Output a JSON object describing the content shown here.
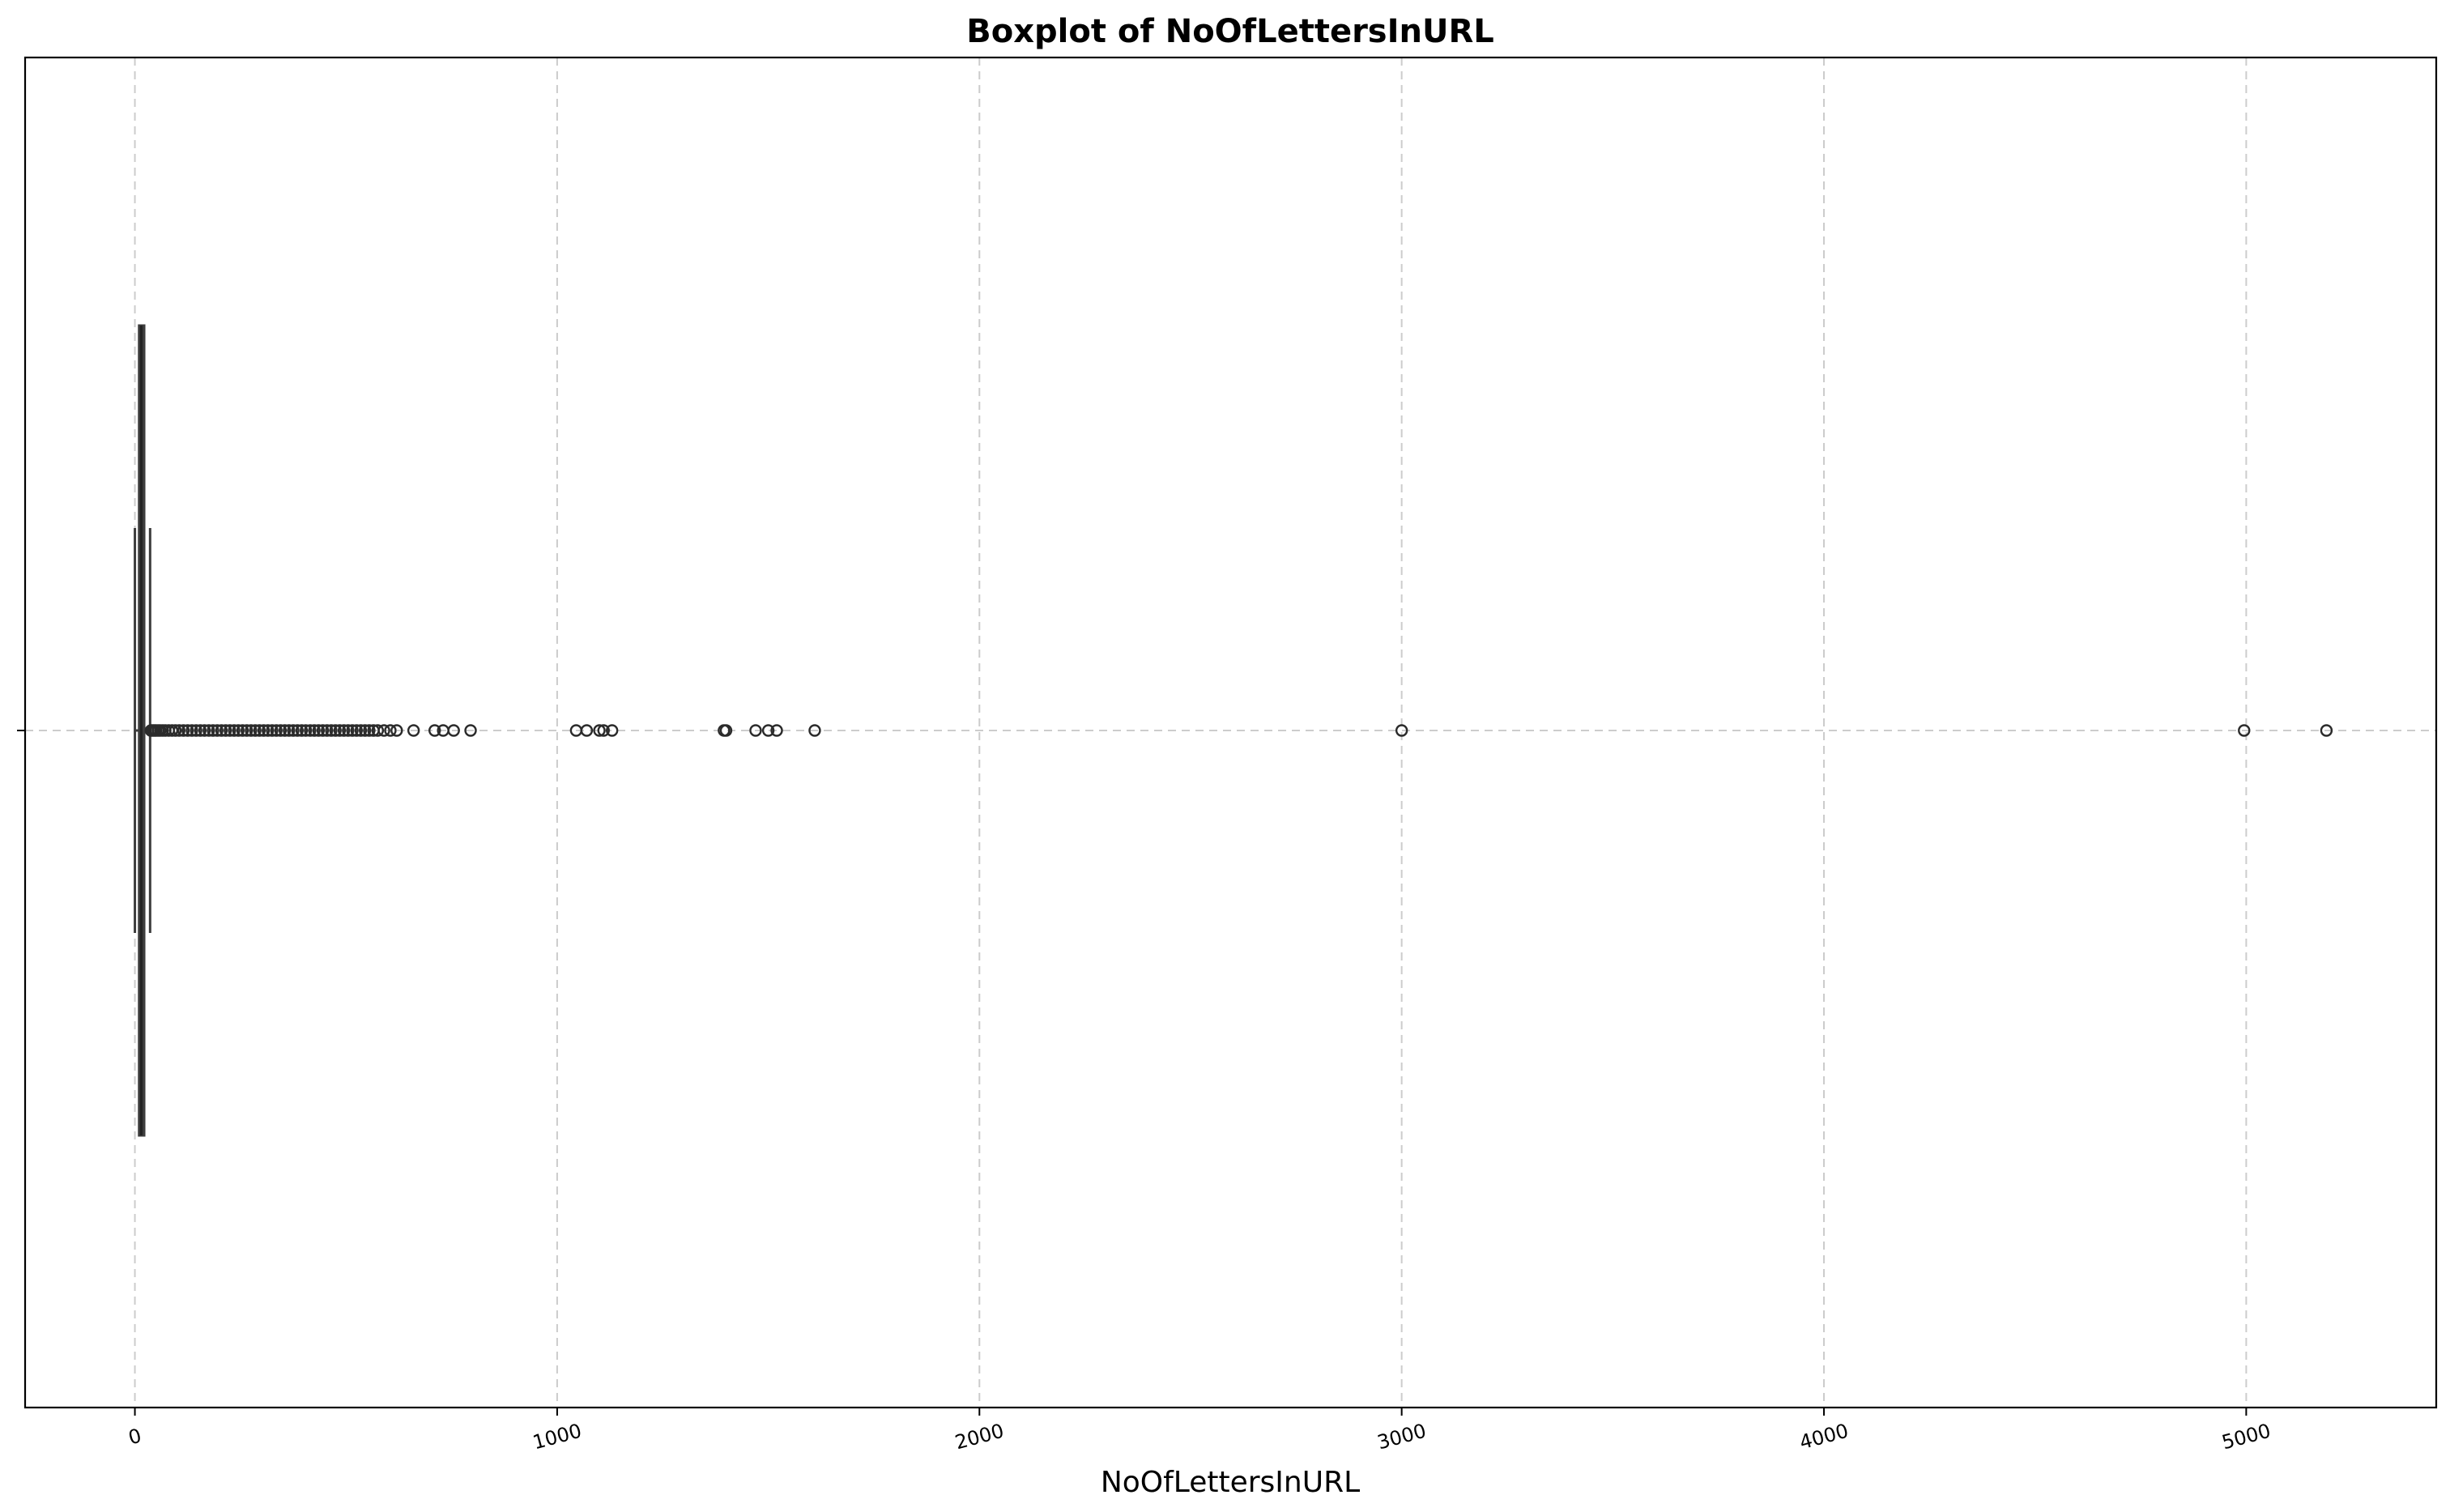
{
  "chart_data": {
    "type": "boxplot",
    "title": "Boxplot of NoOfLettersInURL",
    "xlabel": "NoOfLettersInURL",
    "ylabel": "",
    "orientation": "horizontal",
    "xlim": [
      -260,
      5450
    ],
    "x_ticks": [
      0,
      1000,
      2000,
      3000,
      4000,
      5000
    ],
    "x_tick_labels": [
      "0",
      "1000",
      "2000",
      "3000",
      "4000",
      "5000"
    ],
    "x_tick_rotation": -15,
    "grid": true,
    "box": {
      "whisker_low": 0,
      "q1": 10,
      "median": 15,
      "q3": 22,
      "whisker_high": 36
    },
    "outliers": [
      38,
      42,
      46,
      50,
      55,
      60,
      66,
      72,
      80,
      88,
      96,
      105,
      115,
      125,
      135,
      145,
      155,
      165,
      175,
      185,
      195,
      205,
      215,
      225,
      235,
      245,
      255,
      265,
      275,
      285,
      295,
      305,
      315,
      325,
      335,
      345,
      355,
      365,
      375,
      385,
      395,
      405,
      415,
      425,
      435,
      445,
      455,
      465,
      475,
      485,
      495,
      505,
      515,
      525,
      535,
      545,
      555,
      565,
      575,
      590,
      605,
      620,
      660,
      710,
      730,
      755,
      795,
      1045,
      1070,
      1100,
      1110,
      1130,
      1395,
      1400,
      1470,
      1500,
      1520,
      1610,
      3000,
      4995,
      5190
    ],
    "colors": {
      "box_fill": "#3a3a3a",
      "line": "#3d3d3d",
      "outlier": "#2b2b2b",
      "grid": "#cccccc"
    }
  }
}
